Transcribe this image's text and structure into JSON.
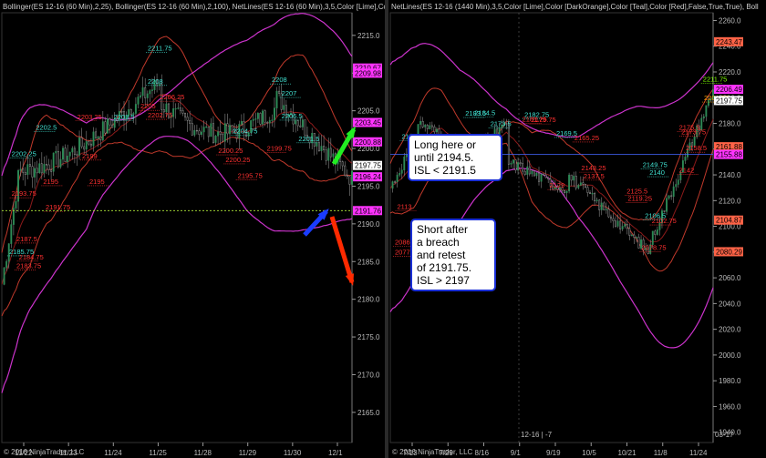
{
  "chart_data": [
    {
      "type": "line",
      "indicator_header": "Bollinger(ES 12-16 (60 Min),2,25), Bollinger(ES 12-16 (60 Min),2,100), NetLines(ES 12-16 (60 Min),3,5,Color [Lime],Colo",
      "copyright": "© 2016 NinjaTrader, LLC",
      "ylim": [
        2161,
        2218
      ],
      "y_ticks": [
        2165.0,
        2170.0,
        2175.0,
        2180.0,
        2185.0,
        2190.0,
        2195.0,
        2200.0,
        2205.0,
        2210.0,
        2215.0
      ],
      "x_ticks": [
        "11/22",
        "11/23",
        "11/24",
        "11/25",
        "11/28",
        "11/29",
        "11/30",
        "12/1"
      ],
      "price_markers": [
        {
          "value": "2210.67",
          "color": "#ff33ff"
        },
        {
          "value": "2209.98",
          "color": "#ff33ff"
        },
        {
          "value": "2203.45",
          "color": "#ff33ff"
        },
        {
          "value": "2200.88",
          "color": "#ff33ff"
        },
        {
          "value": "2197.75",
          "color": "#ffffff"
        },
        {
          "value": "2196.24",
          "color": "#ff33ff"
        },
        {
          "value": "2191.76",
          "color": "#ff33ff"
        }
      ],
      "level_labels": [
        {
          "text": "2211.75",
          "x": 3.0,
          "y": 2213.0,
          "color": "#40e0d0"
        },
        {
          "text": "2208",
          "x": 3.0,
          "y": 2208.6,
          "color": "#40e0d0"
        },
        {
          "text": "2208",
          "x": 5.55,
          "y": 2208.8,
          "color": "#40e0d0"
        },
        {
          "text": "2207",
          "x": 5.75,
          "y": 2207.0,
          "color": "#40e0d0"
        },
        {
          "text": "2206.5",
          "x": 5.75,
          "y": 2204.0,
          "color": "#40e0d0"
        },
        {
          "text": "2206.25",
          "x": 3.25,
          "y": 2206.5,
          "color": "#ff3030"
        },
        {
          "text": "2205",
          "x": 2.85,
          "y": 2205.3,
          "color": "#ff3030"
        },
        {
          "text": "2204.75",
          "x": 4.75,
          "y": 2202.0,
          "color": "#40e0d0"
        },
        {
          "text": "2203.25",
          "x": 1.55,
          "y": 2203.9,
          "color": "#ff3030"
        },
        {
          "text": "2203.5",
          "x": 2.3,
          "y": 2203.9,
          "color": "#40e0d0"
        },
        {
          "text": "2202.75",
          "x": 3.0,
          "y": 2204.1,
          "color": "#ff3030"
        },
        {
          "text": "2202.5",
          "x": 0.7,
          "y": 2202.5,
          "color": "#40e0d0"
        },
        {
          "text": "2201.5",
          "x": 6.1,
          "y": 2201.0,
          "color": "#40e0d0"
        },
        {
          "text": "2202.25",
          "x": 0.2,
          "y": 2199.0,
          "color": "#40e0d0"
        },
        {
          "text": "2199",
          "x": 1.65,
          "y": 2198.7,
          "color": "#ff3030"
        },
        {
          "text": "2200.25",
          "x": 4.45,
          "y": 2199.4,
          "color": "#ff3030"
        },
        {
          "text": "2200.25",
          "x": 4.6,
          "y": 2198.2,
          "color": "#ff3030"
        },
        {
          "text": "2199.75",
          "x": 5.45,
          "y": 2199.7,
          "color": "#ff3030"
        },
        {
          "text": "2195.75",
          "x": 4.85,
          "y": 2196.1,
          "color": "#ff3030"
        },
        {
          "text": "2195",
          "x": 0.85,
          "y": 2195.3,
          "color": "#ff3030"
        },
        {
          "text": "2195",
          "x": 1.8,
          "y": 2195.3,
          "color": "#ff3030"
        },
        {
          "text": "2193.75",
          "x": 0.2,
          "y": 2193.7,
          "color": "#ff3030"
        },
        {
          "text": "2191.75",
          "x": 0.9,
          "y": 2191.9,
          "color": "#ff3030"
        },
        {
          "text": "2187.5",
          "x": 0.3,
          "y": 2187.7,
          "color": "#ff3030"
        },
        {
          "text": "2185.75",
          "x": 0.15,
          "y": 2186.0,
          "color": "#40e0d0"
        },
        {
          "text": "2184.75",
          "x": 0.35,
          "y": 2185.3,
          "color": "#ff3030"
        },
        {
          "text": "2183.75",
          "x": 0.3,
          "y": 2184.1,
          "color": "#ff3030"
        }
      ],
      "dotted_line": {
        "value": 2191.75,
        "color": "#9acd32"
      },
      "arrows": [
        {
          "color": "#22ee22",
          "direction": "up"
        },
        {
          "color": "#1a3cff",
          "direction": "up"
        },
        {
          "color": "#ff2a00",
          "direction": "down"
        }
      ]
    },
    {
      "type": "line",
      "indicator_header": "NetLines(ES 12-16 (1440 Min),3,5,Color [Lime],Color [DarkOrange],Color [Teal],Color [Red],False,True,True), Boll",
      "copyright": "© 2016 NinjaTrader, LLC",
      "ylim": [
        1932,
        2266
      ],
      "y_ticks": [
        1940.0,
        1960.0,
        1980.0,
        2000.0,
        2020.0,
        2040.0,
        2060.0,
        2080.0,
        2100.0,
        2120.0,
        2140.0,
        2160.0,
        2180.0,
        2200.0,
        2220.0,
        2240.0,
        2260.0
      ],
      "x_ticks": [
        "7/13",
        "7/29",
        "8/16",
        "9/1",
        "9/19",
        "10/5",
        "10/21",
        "11/8",
        "11/24"
      ],
      "rollover_label": "12-16 | -7",
      "axis_corner_label": "03-17",
      "price_markers": [
        {
          "value": "2243.47",
          "color": "#ff6347"
        },
        {
          "value": "2206.49",
          "color": "#ff33ff"
        },
        {
          "value": "2197.75",
          "color": "#ffffff"
        },
        {
          "value": "2161.88",
          "color": "#ff6347"
        },
        {
          "value": "2155.88",
          "color": "#ff33ff"
        },
        {
          "value": "2104.87",
          "color": "#ff6347"
        },
        {
          "value": "2080.29",
          "color": "#ff6347"
        }
      ],
      "level_labels": [
        {
          "text": "2211.75",
          "x": 137.5,
          "y": 2212.5,
          "color": "#7fff00"
        },
        {
          "text": "2201.75",
          "x": 138.0,
          "y": 2198.0,
          "color": "#ffa500"
        },
        {
          "text": "2183.5",
          "x": 33.0,
          "y": 2186.0,
          "color": "#40e0d0"
        },
        {
          "text": "2184.5",
          "x": 37.0,
          "y": 2186.3,
          "color": "#40e0d0"
        },
        {
          "text": "2182.75",
          "x": 59.0,
          "y": 2185.0,
          "color": "#40e0d0"
        },
        {
          "text": "2181.25",
          "x": 58.0,
          "y": 2181.5,
          "color": "#ff3030"
        },
        {
          "text": "2179.75",
          "x": 62.0,
          "y": 2181.0,
          "color": "#ff3030"
        },
        {
          "text": "2173.5",
          "x": 44.0,
          "y": 2178.0,
          "color": "#40e0d0"
        },
        {
          "text": "2170.75",
          "x": 5.0,
          "y": 2168.0,
          "color": "#40e0d0"
        },
        {
          "text": "2169.5",
          "x": 73.0,
          "y": 2170.5,
          "color": "#40e0d0"
        },
        {
          "text": "2165.25",
          "x": 81.0,
          "y": 2167.0,
          "color": "#ff3030"
        },
        {
          "text": "2158.5",
          "x": 130.0,
          "y": 2159.0,
          "color": "#ff3030"
        },
        {
          "text": "2175.5",
          "x": 127.0,
          "y": 2175.0,
          "color": "#ff3030"
        },
        {
          "text": "2173.75",
          "x": 128.0,
          "y": 2171.5,
          "color": "#ff3030"
        },
        {
          "text": "2149.75",
          "x": 111.0,
          "y": 2146.0,
          "color": "#40e0d0"
        },
        {
          "text": "2140",
          "x": 114.0,
          "y": 2140.0,
          "color": "#40e0d0"
        },
        {
          "text": "2143.25",
          "x": 84.0,
          "y": 2143.5,
          "color": "#ff3030"
        },
        {
          "text": "2137.5",
          "x": 85.0,
          "y": 2137.3,
          "color": "#ff3030"
        },
        {
          "text": "2142",
          "x": 127.0,
          "y": 2141.7,
          "color": "#ff3030"
        },
        {
          "text": "2129",
          "x": 70.0,
          "y": 2130.0,
          "color": "#ff3030"
        },
        {
          "text": "2125.5",
          "x": 104.0,
          "y": 2125.7,
          "color": "#ff3030"
        },
        {
          "text": "2119.25",
          "x": 104.5,
          "y": 2120.0,
          "color": "#ff3030"
        },
        {
          "text": "2106.5",
          "x": 112.0,
          "y": 2106.5,
          "color": "#40e0d0"
        },
        {
          "text": "2102.75",
          "x": 115.0,
          "y": 2102.5,
          "color": "#ff3030"
        },
        {
          "text": "2113",
          "x": 3.0,
          "y": 2113.5,
          "color": "#ff3030"
        },
        {
          "text": "2078.75",
          "x": 110.5,
          "y": 2081.5,
          "color": "#ff3030"
        },
        {
          "text": "2086",
          "x": 2.0,
          "y": 2086.0,
          "color": "#ff3030"
        },
        {
          "text": "2077",
          "x": 2.0,
          "y": 2078.0,
          "color": "#ff3030"
        }
      ]
    }
  ],
  "callouts": {
    "long": {
      "line1": "Long here or",
      "line2": "until 2194.5.",
      "line3": "ISL < 2191.5"
    },
    "short": {
      "line1": "Short after",
      "line2": "a breach",
      "line3": "and retest",
      "line4": "of 2191.75.",
      "line5": "ISL > 2197"
    }
  }
}
